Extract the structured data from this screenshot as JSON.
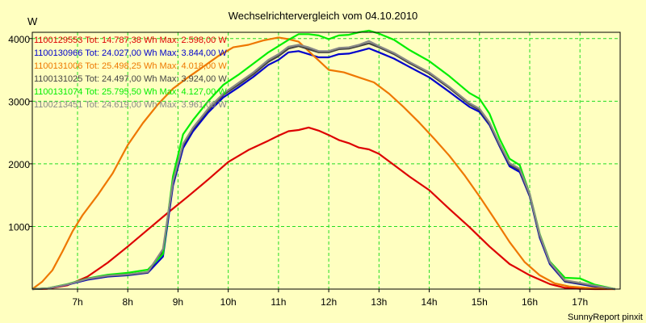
{
  "chart_data": {
    "type": "line",
    "title": "Wechselrichtervergleich vom 04.10.2010",
    "ylabel": "W",
    "xlabel": "",
    "footer": "SunnyReport pinxit",
    "xlim": [
      6.1,
      17.8
    ],
    "ylim": [
      0,
      4100
    ],
    "yticks": [
      1000,
      2000,
      3000,
      4000
    ],
    "xticks": [
      {
        "value": 7,
        "label": "7h"
      },
      {
        "value": 8,
        "label": "8h"
      },
      {
        "value": 9,
        "label": "9h"
      },
      {
        "value": 10,
        "label": "10h"
      },
      {
        "value": 11,
        "label": "11h"
      },
      {
        "value": 12,
        "label": "12h"
      },
      {
        "value": 13,
        "label": "13h"
      },
      {
        "value": 14,
        "label": "14h"
      },
      {
        "value": 15,
        "label": "15h"
      },
      {
        "value": 16,
        "label": "16h"
      },
      {
        "value": 17,
        "label": "17h"
      }
    ],
    "grid": true,
    "legend_position": "top-left",
    "series": [
      {
        "name": "1100129553",
        "legend": "1100129553 Tot: 14.787,38 Wh Max: 2.598,00 W",
        "color": "#dd0000",
        "x": [
          6.1,
          6.4,
          6.8,
          7.2,
          7.6,
          8.0,
          8.4,
          8.8,
          9.2,
          9.6,
          10.0,
          10.4,
          10.8,
          11.0,
          11.2,
          11.4,
          11.6,
          11.8,
          12.0,
          12.2,
          12.4,
          12.6,
          12.8,
          13.0,
          13.3,
          13.6,
          14.0,
          14.4,
          14.8,
          15.2,
          15.6,
          16.0,
          16.4,
          16.7,
          17.0,
          17.3,
          17.7
        ],
        "values": [
          0,
          5,
          60,
          200,
          420,
          680,
          950,
          1220,
          1480,
          1750,
          2030,
          2220,
          2370,
          2450,
          2520,
          2540,
          2580,
          2530,
          2460,
          2380,
          2330,
          2260,
          2230,
          2160,
          1980,
          1800,
          1580,
          1280,
          990,
          680,
          400,
          220,
          80,
          20,
          5,
          0,
          0
        ]
      },
      {
        "name": "1100130966",
        "legend": "1100130966 Tot: 24.027,00 Wh Max: 3.844,00 W",
        "color": "#0000cc",
        "x": [
          6.1,
          6.4,
          6.8,
          7.2,
          7.6,
          8.0,
          8.4,
          8.7,
          8.9,
          9.1,
          9.3,
          9.6,
          9.9,
          10.2,
          10.5,
          10.8,
          11.0,
          11.2,
          11.4,
          11.6,
          11.8,
          12.0,
          12.2,
          12.4,
          12.6,
          12.8,
          13.0,
          13.3,
          13.6,
          14.0,
          14.4,
          14.8,
          15.0,
          15.2,
          15.4,
          15.6,
          15.8,
          16.0,
          16.2,
          16.4,
          16.7,
          17.0,
          17.3,
          17.7
        ],
        "values": [
          0,
          10,
          70,
          150,
          200,
          220,
          260,
          520,
          1650,
          2250,
          2520,
          2820,
          3060,
          3220,
          3390,
          3580,
          3660,
          3780,
          3800,
          3750,
          3700,
          3700,
          3750,
          3760,
          3800,
          3844,
          3780,
          3680,
          3550,
          3380,
          3150,
          2910,
          2830,
          2620,
          2280,
          1960,
          1870,
          1480,
          820,
          400,
          120,
          80,
          40,
          0
        ]
      },
      {
        "name": "1100131006",
        "legend": "1100131006 Tot: 25.498,25 Wh Max: 4.018,00 W",
        "color": "#ee7700",
        "x": [
          6.1,
          6.3,
          6.5,
          6.7,
          6.9,
          7.1,
          7.4,
          7.7,
          8.0,
          8.3,
          8.6,
          8.9,
          9.2,
          9.5,
          9.8,
          10.1,
          10.4,
          10.7,
          11.0,
          11.2,
          11.4,
          11.6,
          11.8,
          12.0,
          12.3,
          12.6,
          12.9,
          13.2,
          13.5,
          13.8,
          14.1,
          14.4,
          14.7,
          15.0,
          15.3,
          15.6,
          15.9,
          16.2,
          16.5,
          16.8,
          17.1,
          17.4,
          17.7
        ],
        "values": [
          0,
          120,
          300,
          600,
          920,
          1180,
          1500,
          1850,
          2300,
          2650,
          2950,
          3200,
          3380,
          3550,
          3720,
          3860,
          3900,
          3970,
          4018,
          3990,
          3950,
          3800,
          3650,
          3500,
          3460,
          3380,
          3300,
          3120,
          2900,
          2660,
          2400,
          2130,
          1820,
          1480,
          1120,
          750,
          430,
          220,
          90,
          40,
          20,
          8,
          0
        ]
      },
      {
        "name": "1100131025",
        "legend": "1100131025 Tot: 24.497,00 Wh Max: 3.924,00 W",
        "color": "#444444",
        "x": [
          6.1,
          6.4,
          6.8,
          7.2,
          7.6,
          8.0,
          8.4,
          8.7,
          8.9,
          9.1,
          9.3,
          9.6,
          9.9,
          10.2,
          10.5,
          10.8,
          11.0,
          11.2,
          11.4,
          11.6,
          11.8,
          12.0,
          12.2,
          12.4,
          12.6,
          12.8,
          13.0,
          13.3,
          13.6,
          14.0,
          14.4,
          14.8,
          15.0,
          15.2,
          15.4,
          15.6,
          15.8,
          16.0,
          16.2,
          16.4,
          16.7,
          17.0,
          17.3,
          17.7
        ],
        "values": [
          0,
          10,
          75,
          160,
          210,
          230,
          270,
          600,
          1700,
          2300,
          2560,
          2860,
          3100,
          3260,
          3430,
          3630,
          3720,
          3840,
          3880,
          3830,
          3780,
          3780,
          3830,
          3840,
          3880,
          3924,
          3860,
          3750,
          3610,
          3440,
          3210,
          2950,
          2860,
          2640,
          2300,
          1990,
          1900,
          1500,
          850,
          420,
          130,
          90,
          50,
          0
        ]
      },
      {
        "name": "1100131074",
        "legend": "1100131074 Tot: 25.795,50 Wh Max: 4.127,00 W",
        "color": "#00ee00",
        "x": [
          6.1,
          6.4,
          6.8,
          7.2,
          7.6,
          8.0,
          8.4,
          8.7,
          8.9,
          9.1,
          9.3,
          9.6,
          9.9,
          10.2,
          10.5,
          10.8,
          11.0,
          11.2,
          11.4,
          11.6,
          11.8,
          12.0,
          12.2,
          12.4,
          12.6,
          12.8,
          13.0,
          13.3,
          13.6,
          14.0,
          14.4,
          14.8,
          15.0,
          15.2,
          15.4,
          15.6,
          15.8,
          16.0,
          16.2,
          16.4,
          16.7,
          17.0,
          17.3,
          17.7
        ],
        "values": [
          0,
          12,
          80,
          170,
          230,
          260,
          310,
          560,
          1800,
          2470,
          2700,
          3000,
          3260,
          3420,
          3600,
          3780,
          3880,
          3980,
          4070,
          4070,
          4050,
          3990,
          4050,
          4060,
          4100,
          4127,
          4080,
          3980,
          3820,
          3640,
          3400,
          3130,
          3040,
          2800,
          2400,
          2080,
          1980,
          1520,
          880,
          440,
          180,
          170,
          70,
          0
        ]
      },
      {
        "name": "1100213451",
        "legend": "1100213451 Tot: 24.619,00 Wh Max: 3.961,00 W",
        "color": "#888888",
        "x": [
          6.1,
          6.4,
          6.8,
          7.2,
          7.6,
          8.0,
          8.4,
          8.7,
          8.9,
          9.1,
          9.3,
          9.6,
          9.9,
          10.2,
          10.5,
          10.8,
          11.0,
          11.2,
          11.4,
          11.6,
          11.8,
          12.0,
          12.2,
          12.4,
          12.6,
          12.8,
          13.0,
          13.3,
          13.6,
          14.0,
          14.4,
          14.8,
          15.0,
          15.2,
          15.4,
          15.6,
          15.8,
          16.0,
          16.2,
          16.4,
          16.7,
          17.0,
          17.3,
          17.7
        ],
        "values": [
          0,
          10,
          75,
          165,
          215,
          235,
          275,
          640,
          1720,
          2320,
          2580,
          2880,
          3120,
          3290,
          3460,
          3660,
          3750,
          3870,
          3900,
          3860,
          3800,
          3800,
          3850,
          3860,
          3900,
          3961,
          3880,
          3770,
          3630,
          3460,
          3230,
          2970,
          2880,
          2660,
          2320,
          2010,
          1920,
          1520,
          870,
          430,
          140,
          100,
          55,
          0
        ]
      }
    ]
  }
}
